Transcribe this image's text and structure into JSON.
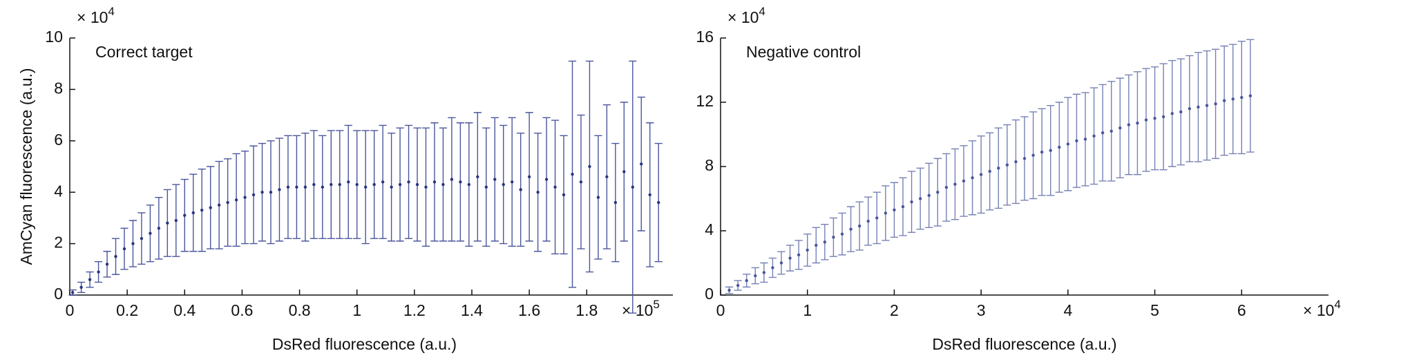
{
  "chart_data": [
    {
      "type": "errorbar",
      "title": "Correct target",
      "xlabel": "DsRed fluorescence (a.u.)",
      "ylabel": "AmCyan fluorescence (a.u.)",
      "x_multiplier": {
        "base": "× 10",
        "exponent": "5"
      },
      "y_multiplier": {
        "base": "× 10",
        "exponent": "4"
      },
      "color": "#4a559c",
      "marker_color": "#2a3580",
      "xlim": [
        0,
        2.1
      ],
      "ylim": [
        0,
        10
      ],
      "xticks": [
        0,
        0.2,
        0.4,
        0.6,
        0.8,
        1,
        1.2,
        1.4,
        1.6,
        1.8
      ],
      "yticks": [
        0,
        2,
        4,
        6,
        8,
        10
      ],
      "x": [
        0.01,
        0.04,
        0.07,
        0.1,
        0.13,
        0.16,
        0.19,
        0.22,
        0.25,
        0.28,
        0.31,
        0.34,
        0.37,
        0.4,
        0.43,
        0.46,
        0.49,
        0.52,
        0.55,
        0.58,
        0.61,
        0.64,
        0.67,
        0.7,
        0.73,
        0.76,
        0.79,
        0.82,
        0.85,
        0.88,
        0.91,
        0.94,
        0.97,
        1.0,
        1.03,
        1.06,
        1.09,
        1.12,
        1.15,
        1.18,
        1.21,
        1.24,
        1.27,
        1.3,
        1.33,
        1.36,
        1.39,
        1.42,
        1.45,
        1.48,
        1.51,
        1.54,
        1.57,
        1.6,
        1.63,
        1.66,
        1.69,
        1.72,
        1.75,
        1.78,
        1.81,
        1.84,
        1.87,
        1.9,
        1.93,
        1.96,
        1.99,
        2.02,
        2.05
      ],
      "values": [
        0.1,
        0.3,
        0.6,
        0.9,
        1.2,
        1.5,
        1.8,
        2.0,
        2.2,
        2.4,
        2.6,
        2.8,
        2.9,
        3.1,
        3.2,
        3.3,
        3.4,
        3.5,
        3.6,
        3.7,
        3.8,
        3.9,
        4.0,
        4.0,
        4.1,
        4.2,
        4.2,
        4.2,
        4.3,
        4.2,
        4.3,
        4.3,
        4.4,
        4.3,
        4.2,
        4.3,
        4.4,
        4.2,
        4.3,
        4.4,
        4.3,
        4.2,
        4.4,
        4.3,
        4.5,
        4.4,
        4.3,
        4.6,
        4.2,
        4.5,
        4.3,
        4.4,
        4.1,
        4.6,
        4.0,
        4.5,
        4.2,
        3.9,
        4.7,
        4.4,
        5.0,
        3.8,
        4.6,
        3.6,
        4.8,
        4.2,
        5.1,
        3.9,
        3.6
      ],
      "errors": [
        0.1,
        0.2,
        0.3,
        0.4,
        0.5,
        0.7,
        0.8,
        0.9,
        1.0,
        1.1,
        1.2,
        1.3,
        1.4,
        1.4,
        1.5,
        1.6,
        1.6,
        1.7,
        1.7,
        1.8,
        1.8,
        1.9,
        1.9,
        2.0,
        2.0,
        2.0,
        2.0,
        2.1,
        2.1,
        2.0,
        2.1,
        2.1,
        2.2,
        2.1,
        2.2,
        2.1,
        2.2,
        2.1,
        2.2,
        2.2,
        2.2,
        2.3,
        2.3,
        2.2,
        2.4,
        2.3,
        2.4,
        2.5,
        2.3,
        2.4,
        2.3,
        2.5,
        2.2,
        2.5,
        2.3,
        2.4,
        2.6,
        2.3,
        4.4,
        2.6,
        4.1,
        2.4,
        2.8,
        2.3,
        2.7,
        4.9,
        2.6,
        2.8,
        2.3
      ]
    },
    {
      "type": "errorbar",
      "title": "Negative control",
      "xlabel": "DsRed fluorescence (a.u.)",
      "x_multiplier": {
        "base": "× 10",
        "exponent": "4"
      },
      "y_multiplier": {
        "base": "× 10",
        "exponent": "4"
      },
      "color": "#7580b4",
      "marker_color": "#4a559c",
      "xlim": [
        0,
        7
      ],
      "ylim": [
        0,
        16
      ],
      "xticks": [
        0,
        1,
        2,
        3,
        4,
        5,
        6
      ],
      "yticks": [
        0,
        4,
        8,
        12,
        16
      ],
      "x": [
        0.1,
        0.2,
        0.3,
        0.4,
        0.5,
        0.6,
        0.7,
        0.8,
        0.9,
        1.0,
        1.1,
        1.2,
        1.3,
        1.4,
        1.5,
        1.6,
        1.7,
        1.8,
        1.9,
        2.0,
        2.1,
        2.2,
        2.3,
        2.4,
        2.5,
        2.6,
        2.7,
        2.8,
        2.9,
        3.0,
        3.1,
        3.2,
        3.3,
        3.4,
        3.5,
        3.6,
        3.7,
        3.8,
        3.9,
        4.0,
        4.1,
        4.2,
        4.3,
        4.4,
        4.5,
        4.6,
        4.7,
        4.8,
        4.9,
        5.0,
        5.1,
        5.2,
        5.3,
        5.4,
        5.5,
        5.6,
        5.7,
        5.8,
        5.9,
        6.0,
        6.1
      ],
      "values": [
        0.3,
        0.6,
        0.9,
        1.2,
        1.4,
        1.7,
        2.0,
        2.3,
        2.5,
        2.8,
        3.1,
        3.3,
        3.6,
        3.8,
        4.1,
        4.3,
        4.6,
        4.8,
        5.1,
        5.3,
        5.5,
        5.8,
        6.0,
        6.2,
        6.4,
        6.7,
        6.9,
        7.1,
        7.3,
        7.5,
        7.7,
        7.9,
        8.1,
        8.3,
        8.5,
        8.7,
        8.9,
        9.0,
        9.2,
        9.4,
        9.6,
        9.7,
        9.9,
        10.1,
        10.2,
        10.4,
        10.6,
        10.7,
        10.9,
        11.0,
        11.1,
        11.3,
        11.4,
        11.6,
        11.7,
        11.8,
        11.9,
        12.1,
        12.2,
        12.3,
        12.4
      ],
      "errors": [
        0.2,
        0.3,
        0.4,
        0.5,
        0.6,
        0.6,
        0.7,
        0.8,
        0.9,
        1.0,
        1.1,
        1.1,
        1.2,
        1.3,
        1.4,
        1.5,
        1.5,
        1.6,
        1.7,
        1.7,
        1.8,
        1.9,
        1.9,
        2.0,
        2.1,
        2.1,
        2.2,
        2.2,
        2.3,
        2.4,
        2.4,
        2.5,
        2.5,
        2.6,
        2.6,
        2.7,
        2.7,
        2.8,
        2.8,
        2.9,
        2.9,
        2.9,
        3.0,
        3.0,
        3.1,
        3.1,
        3.1,
        3.2,
        3.2,
        3.2,
        3.3,
        3.3,
        3.3,
        3.3,
        3.4,
        3.4,
        3.4,
        3.4,
        3.4,
        3.5,
        3.5
      ]
    }
  ]
}
